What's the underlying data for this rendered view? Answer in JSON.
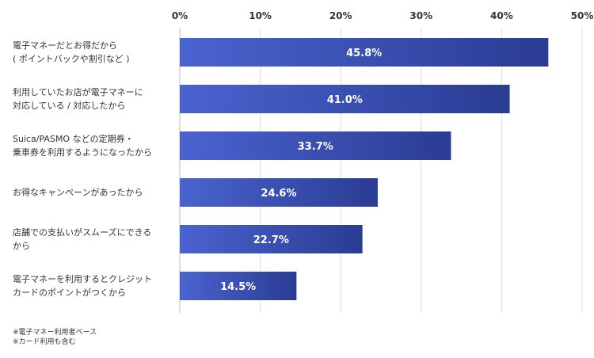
{
  "chart_data": {
    "type": "bar",
    "orientation": "horizontal",
    "categories": [
      "電子マネーだとお得だから\n( ポイントバックや割引など )",
      "利用していたお店が電子マネーに\n対応している / 対応したから",
      "Suica/PASMO などの定期券・\n乗車券を利用するようになったから",
      "お得なキャンペーンがあったから",
      "店舗での支払いがスムーズにできる\nから",
      "電子マネーを利用するとクレジット\nカードのポイントがつくから"
    ],
    "values": [
      45.8,
      41.0,
      33.7,
      24.6,
      22.7,
      14.5
    ],
    "value_labels": [
      "45.8%",
      "41.0%",
      "33.7%",
      "24.6%",
      "22.7%",
      "14.5%"
    ],
    "xlim": [
      0,
      50
    ],
    "x_ticks": [
      0,
      10,
      20,
      30,
      40,
      50
    ],
    "x_tick_labels": [
      "0%",
      "10%",
      "20%",
      "30%",
      "40%",
      "50%"
    ],
    "x_axis_position": "top",
    "grid": true,
    "bar_color_start": "#4a63cf",
    "bar_color_end": "#2a3c93",
    "notes": [
      "※電子マネー利用者ベース",
      "※カード利用も含む"
    ]
  }
}
